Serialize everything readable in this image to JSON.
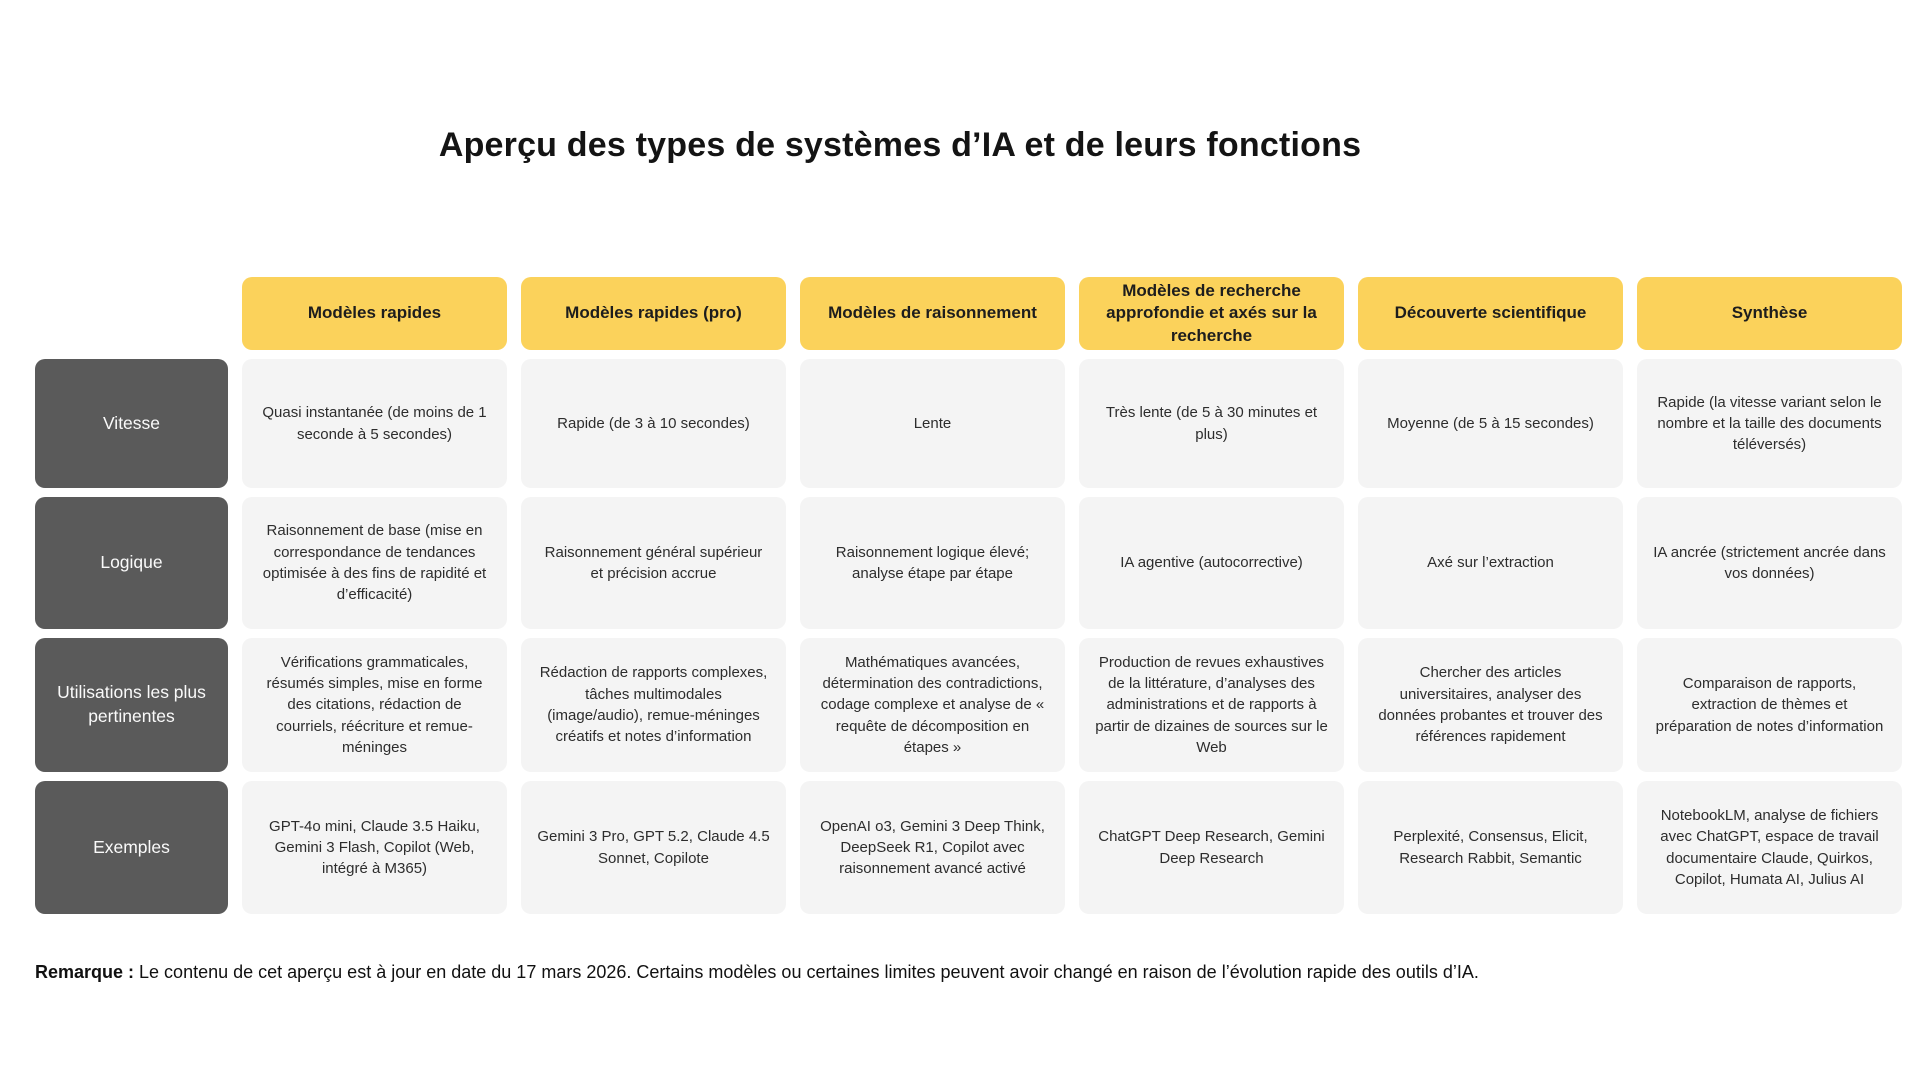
{
  "chart_data": {
    "type": "table",
    "title": "Aperçu des types de systèmes d’IA et de leurs fonctions",
    "column_headers": [
      "Modèles rapides",
      "Modèles rapides (pro)",
      "Modèles de raisonnement",
      "Modèles de recherche approfondie et axés sur la recherche",
      "Découverte scientifique",
      "Synthèse"
    ],
    "rows": [
      {
        "label": "Vitesse",
        "cells": [
          "Quasi instantanée (de moins de 1 seconde à 5 secondes)",
          "Rapide (de 3 à 10 secondes)",
          "Lente",
          "Très lente (de 5 à 30 minutes et plus)",
          "Moyenne (de 5 à 15 secondes)",
          "Rapide (la vitesse variant selon le nombre et la taille des documents téléversés)"
        ]
      },
      {
        "label": "Logique",
        "cells": [
          "Raisonnement de base (mise en correspondance de tendances optimisée à des fins de rapidité et d’efficacité)",
          "Raisonnement général supérieur et précision accrue",
          "Raisonnement logique élevé; analyse étape par étape",
          "IA agentive (autocorrective)",
          "Axé sur l’extraction",
          "IA ancrée (strictement ancrée dans vos données)"
        ]
      },
      {
        "label": "Utilisations les plus pertinentes",
        "cells": [
          "Vérifications grammaticales, résumés simples, mise en forme des citations, rédaction de courriels, réécriture et remue-méninges",
          "Rédaction de rapports complexes, tâches multimodales (image/audio), remue-méninges créatifs et notes d’information",
          "Mathématiques avancées, détermination des contradictions, codage complexe et analyse de « requête de décomposition en étapes »",
          "Production de revues exhaustives de la littérature, d’analyses des administrations et de rapports à partir de dizaines de sources sur le Web",
          "Chercher des articles universitaires, analyser des données probantes et trouver des références rapidement",
          "Comparaison de rapports, extraction de thèmes et préparation de notes d’information"
        ]
      },
      {
        "label": "Exemples",
        "cells": [
          "GPT-4o mini, Claude 3.5 Haiku, Gemini 3 Flash, Copilot (Web, intégré à M365)",
          "Gemini 3 Pro, GPT 5.2, Claude 4.5 Sonnet, Copilote",
          "OpenAI o3, Gemini 3 Deep Think, DeepSeek R1, Copilot avec raisonnement avancé activé",
          "ChatGPT Deep Research, Gemini Deep Research",
          "Perplexité, Consensus, Elicit, Research Rabbit, Semantic",
          "NotebookLM, analyse de fichiers avec ChatGPT, espace de travail documentaire Claude, Quirkos, Copilot, Humata AI, Julius AI"
        ]
      }
    ],
    "layout": {
      "grid": "7-column comparison table, first column row headers",
      "header_color": "#FBD25B",
      "row_header_color": "#5A5A5A",
      "cell_color": "#F4F4F4"
    }
  },
  "note": {
    "label": "Remarque :",
    "text": " Le contenu de cet aperçu est à jour en date du 17 mars 2026. Certains modèles ou certaines limites peuvent avoir changé en raison de l’évolution rapide des outils d’IA."
  }
}
